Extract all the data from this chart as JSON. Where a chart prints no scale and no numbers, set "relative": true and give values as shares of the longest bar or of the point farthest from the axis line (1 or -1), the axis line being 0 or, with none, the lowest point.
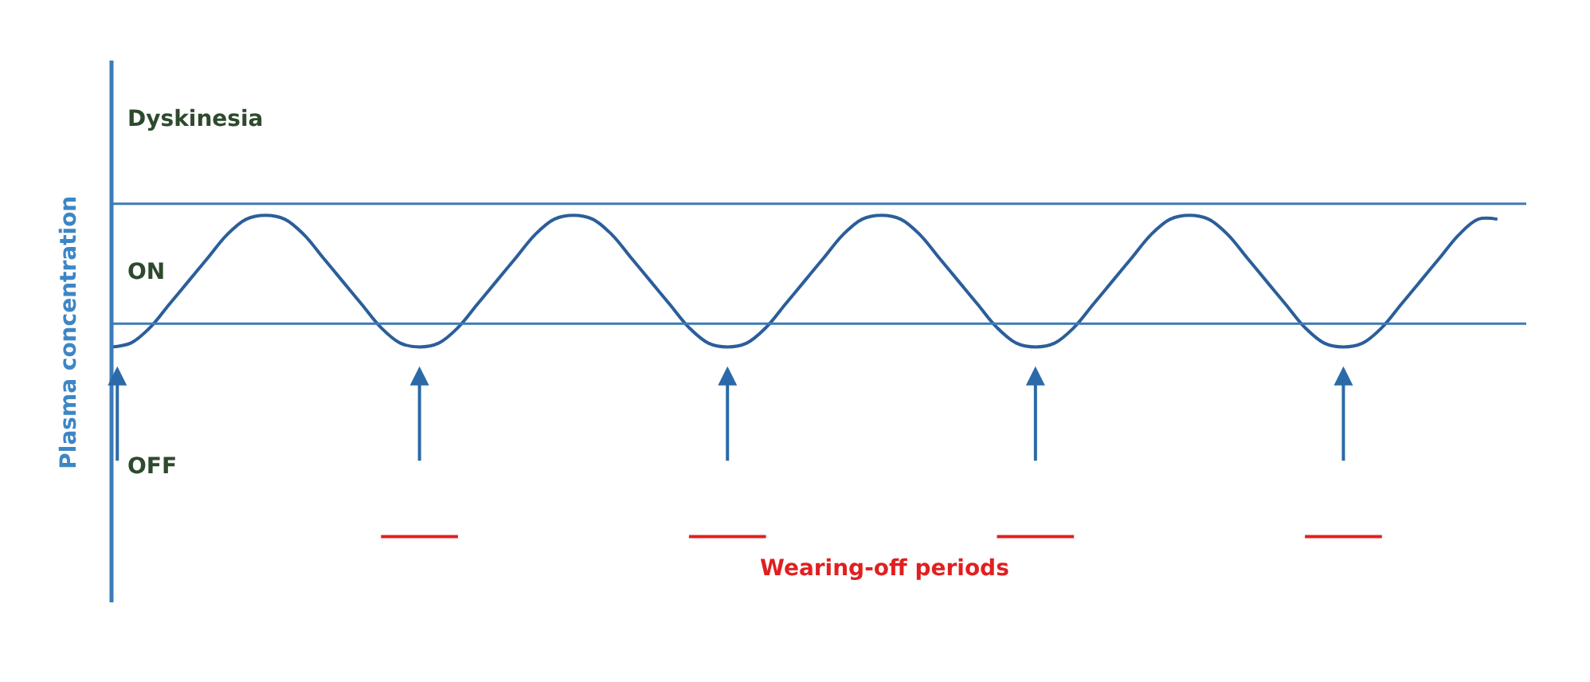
{
  "chart_data": {
    "type": "line",
    "relative": true,
    "tick_labels": false,
    "line_style": "solid",
    "marker": "none",
    "ylabel": "Plasma concentration",
    "categories": [
      null,
      null,
      null,
      null,
      null,
      null,
      null,
      null,
      null,
      null,
      null,
      null,
      null,
      null,
      null,
      null,
      null,
      null,
      null,
      null,
      null,
      null,
      null,
      null,
      null,
      null,
      null,
      null,
      null,
      null,
      null,
      null,
      null,
      null,
      null,
      null,
      null,
      null,
      null,
      null,
      null,
      null,
      null,
      null,
      null,
      null,
      null,
      null,
      null,
      null,
      null,
      null,
      null,
      null,
      null,
      null,
      null,
      null,
      null,
      null,
      null,
      null,
      null,
      null,
      null,
      null,
      null,
      null,
      null,
      null,
      null,
      null,
      null
    ],
    "series": [
      {
        "color": "#2b5e9a",
        "values": [
          0.66,
          0.67,
          0.71,
          0.77,
          0.83,
          0.89,
          0.95,
          0.99,
          1,
          0.99,
          0.95,
          0.89,
          0.83,
          0.77,
          0.71,
          0.67,
          0.66,
          0.67,
          0.71,
          0.77,
          0.83,
          0.89,
          0.95,
          0.99,
          1,
          0.99,
          0.95,
          0.89,
          0.83,
          0.77,
          0.71,
          0.67,
          0.66,
          0.67,
          0.71,
          0.77,
          0.83,
          0.89,
          0.95,
          0.99,
          1,
          0.99,
          0.95,
          0.89,
          0.83,
          0.77,
          0.71,
          0.67,
          0.66,
          0.67,
          0.71,
          0.77,
          0.83,
          0.89,
          0.95,
          0.99,
          1,
          0.99,
          0.95,
          0.89,
          0.83,
          0.77,
          0.71,
          0.67,
          0.66,
          0.67,
          0.71,
          0.77,
          0.83,
          0.89,
          0.95,
          0.99,
          0.99
        ]
      },
      {
        "name": "Wearing-off periods",
        "color": "#e02020",
        "values": [
          null,
          null,
          null,
          null,
          null,
          null,
          null,
          null,
          null,
          null,
          null,
          null,
          null,
          null,
          0.17,
          0.17,
          0.17,
          0.17,
          0.17,
          null,
          null,
          null,
          null,
          null,
          null,
          null,
          null,
          null,
          null,
          null,
          0.17,
          0.17,
          0.17,
          0.17,
          0.17,
          null,
          null,
          null,
          null,
          null,
          null,
          null,
          null,
          null,
          null,
          null,
          0.17,
          0.17,
          0.17,
          0.17,
          0.17,
          null,
          null,
          null,
          null,
          null,
          null,
          null,
          null,
          null,
          null,
          null,
          0.17,
          0.17,
          0.17,
          0.17,
          0.17,
          null,
          null,
          null,
          null,
          null,
          null
        ]
      }
    ],
    "ref_lines": [
      {
        "axis": "y",
        "value": 1.03,
        "color": "#3d7ab8"
      },
      {
        "axis": "y",
        "value": 0.72,
        "color": "#3d7ab8"
      }
    ],
    "annotations": [
      "Dyskinesia",
      "ON",
      "OFF"
    ]
  }
}
